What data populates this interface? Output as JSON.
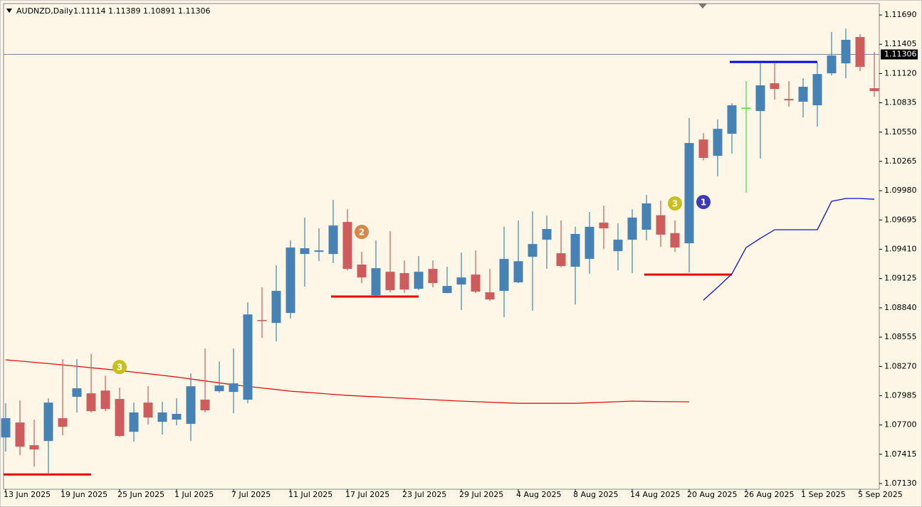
{
  "chart_data": {
    "type": "candlestick",
    "symbol": "AUDNZD,Daily",
    "ohlc_text": "1.11114 1.11389 1.10891 1.11306",
    "categories": [
      "13 Jun 2025",
      null,
      null,
      null,
      "19 Jun 2025",
      null,
      null,
      null,
      "25 Jun 2025",
      null,
      null,
      null,
      "1 Jul 2025",
      null,
      null,
      null,
      "7 Jul 2025",
      null,
      null,
      null,
      "11 Jul 2025",
      null,
      null,
      null,
      "17 Jul 2025",
      null,
      null,
      null,
      "23 Jul 2025",
      null,
      null,
      null,
      "29 Jul 2025",
      null,
      null,
      null,
      "4 Aug 2025",
      null,
      null,
      null,
      "8 Aug 2025",
      null,
      null,
      null,
      "14 Aug 2025",
      null,
      null,
      null,
      "20 Aug 2025",
      null,
      null,
      null,
      "26 Aug 2025",
      null,
      null,
      null,
      "1 Sep 2025",
      null,
      null,
      null,
      "5 Sep 2025",
      null
    ],
    "open": [
      1.07579,
      1.07724,
      1.07503,
      1.07544,
      1.07766,
      1.07974,
      1.08008,
      1.08035,
      1.07953,
      1.07634,
      1.07918,
      1.07731,
      1.07752,
      1.07711,
      1.07946,
      1.08029,
      1.08022,
      1.07946,
      1.08721,
      1.08693,
      1.0879,
      1.09364,
      1.09385,
      1.09364,
      1.09676,
      1.09261,
      1.08963,
      1.09191,
      1.09178,
      1.09025,
      1.09219,
      1.08984,
      1.09067,
      1.09164,
      1.08991,
      1.09005,
      1.09088,
      1.09337,
      1.09503,
      1.09371,
      1.0924,
      1.09316,
      1.09669,
      1.09392,
      1.09503,
      1.096,
      1.09741,
      1.09567,
      1.09468,
      1.10478,
      1.10319,
      1.10534,
      1.10783,
      1.10755,
      1.11025,
      1.10873,
      1.10846,
      1.10811,
      1.11122,
      1.11219,
      1.11475,
      1.10977
    ],
    "high": [
      1.07911,
      1.07939,
      1.07752,
      1.0796,
      1.0834,
      1.0834,
      1.08391,
      1.08181,
      1.08063,
      1.07918,
      1.08077,
      1.07925,
      1.0796,
      1.08202,
      1.08444,
      1.08318,
      1.08444,
      1.08894,
      1.0904,
      1.09254,
      1.09496,
      1.09718,
      1.09614,
      1.09891,
      1.098,
      1.09385,
      1.09496,
      1.09586,
      1.09302,
      1.09344,
      1.09302,
      1.0924,
      1.09378,
      1.09399,
      1.09219,
      1.09629,
      1.0969,
      1.09779,
      1.09736,
      1.0969,
      1.09629,
      1.09773,
      1.09834,
      1.09662,
      1.098,
      1.09939,
      1.09884,
      1.0969,
      1.10687,
      1.10541,
      1.10673,
      1.10833,
      1.11046,
      1.11226,
      1.11226,
      1.11046,
      1.11074,
      1.11226,
      1.11524,
      1.11558,
      1.11503,
      1.1133
    ],
    "low": [
      1.07441,
      1.07406,
      1.07295,
      1.07233,
      1.076,
      1.07822,
      1.07822,
      1.07835,
      1.07586,
      1.07538,
      1.07704,
      1.07607,
      1.07697,
      1.07544,
      1.07822,
      1.08015,
      1.07815,
      1.07911,
      1.08548,
      1.08514,
      1.08735,
      1.09047,
      1.09296,
      1.09275,
      1.09205,
      1.09081,
      1.08956,
      1.08991,
      1.08984,
      1.09012,
      1.0904,
      1.08984,
      1.08818,
      1.08984,
      1.08907,
      1.08749,
      1.09081,
      1.08811,
      1.09219,
      1.09233,
      1.08873,
      1.09171,
      1.09413,
      1.09205,
      1.09178,
      1.09496,
      1.09434,
      1.09385,
      1.09185,
      1.10276,
      1.10119,
      1.10341,
      1.0996,
      1.10292,
      1.10866,
      1.10797,
      1.10693,
      1.10603,
      1.11102,
      1.11074,
      1.11143,
      1.10894
    ],
    "close": [
      1.07766,
      1.07489,
      1.07462,
      1.07918,
      1.07683,
      1.08057,
      1.07835,
      1.07856,
      1.07593,
      1.07822,
      1.07773,
      1.07822,
      1.07808,
      1.08077,
      1.07843,
      1.08084,
      1.08105,
      1.08776,
      1.08714,
      1.09005,
      1.09427,
      1.0942,
      1.09399,
      1.09641,
      1.09219,
      1.09136,
      1.09226,
      1.09012,
      1.09018,
      1.09191,
      1.09081,
      1.09053,
      1.09136,
      1.08998,
      1.08922,
      1.09316,
      1.09294,
      1.09461,
      1.09607,
      1.09247,
      1.09559,
      1.09629,
      1.09614,
      1.09503,
      1.09718,
      1.09856,
      1.09552,
      1.09427,
      1.10444,
      1.10299,
      1.10582,
      1.10811,
      1.10783,
      1.11005,
      1.1097,
      1.10859,
      1.10991,
      1.11115,
      1.11295,
      1.11448,
      1.11185,
      1.10949
    ],
    "up_color": "#4682b4",
    "down_color": "#cd5c5c",
    "doji_color": "#44dd44",
    "overlays": [
      {
        "color": "#e81010",
        "values": [
          1.08334,
          1.08322,
          1.0831,
          1.08297,
          1.08285,
          1.08271,
          1.08257,
          1.08244,
          1.0823,
          1.08214,
          1.08199,
          1.08183,
          1.08167,
          1.08148,
          1.08129,
          1.0811,
          1.08091,
          1.08076,
          1.0806,
          1.08045,
          1.08029,
          1.08019,
          1.08009,
          1.07998,
          1.07988,
          1.07981,
          1.07974,
          1.07967,
          1.0796,
          1.07953,
          1.07946,
          1.07939,
          1.07932,
          1.07927,
          1.07922,
          1.07916,
          1.07911,
          1.07911,
          1.07911,
          1.07911,
          1.07911,
          1.07916,
          1.07922,
          1.07927,
          1.07932,
          1.0793,
          1.07928,
          1.07927,
          1.07925,
          null,
          null,
          null,
          null,
          null,
          null,
          null,
          null,
          null,
          null,
          null,
          null,
          null
        ]
      },
      {
        "color": "#1010e0",
        "values": [
          null,
          null,
          null,
          null,
          null,
          null,
          null,
          null,
          null,
          null,
          null,
          null,
          null,
          null,
          null,
          null,
          null,
          null,
          null,
          null,
          null,
          null,
          null,
          null,
          null,
          null,
          null,
          null,
          null,
          null,
          null,
          null,
          null,
          null,
          null,
          null,
          null,
          null,
          null,
          null,
          null,
          null,
          null,
          null,
          null,
          null,
          null,
          null,
          null,
          1.08915,
          1.0904,
          1.09171,
          1.09427,
          1.09517,
          1.096,
          1.096,
          1.096,
          1.096,
          1.09877,
          1.09904,
          1.09904,
          1.09897
        ]
      }
    ],
    "levels": [
      {
        "value": 1.07219,
        "from": 0,
        "to": 6,
        "color": "#ee0000"
      },
      {
        "value": 1.0895,
        "from": 23,
        "to": 29,
        "color": "#ee0000"
      },
      {
        "value": 1.09164,
        "from": 45,
        "to": 51,
        "color": "#ee0000"
      },
      {
        "value": 1.11233,
        "from": 51,
        "to": 57,
        "color": "#0000ee"
      }
    ],
    "markers": [
      {
        "label": "3",
        "at": 8,
        "value": 1.08264,
        "color": "#c8c01e"
      },
      {
        "label": "2",
        "at": 25,
        "value": 1.09579,
        "color": "#d8864a"
      },
      {
        "label": "3",
        "at": 47,
        "value": 1.09856,
        "color": "#c8c01e"
      },
      {
        "label": "1",
        "at": 49,
        "value": 1.0987,
        "color": "#3a3ab8"
      }
    ],
    "last_price": 1.11306,
    "ylim": [
      1.07075,
      1.11801
    ],
    "yticks": [
      {
        "value": 1.0713,
        "label": "1.07130"
      },
      1.07415,
      {
        "value": 1.077,
        "label": "1.07700"
      },
      1.07985,
      {
        "value": 1.0827,
        "label": "1.08270"
      },
      1.08555,
      {
        "value": 1.0884,
        "label": "1.08840"
      },
      1.09125,
      {
        "value": 1.0941,
        "label": "1.09410"
      },
      1.09695,
      {
        "value": 1.0998,
        "label": "1.09980"
      },
      1.10265,
      {
        "value": 1.1055,
        "label": "1.10550"
      },
      1.10835,
      {
        "value": 1.1112,
        "label": "1.11120"
      },
      1.11405,
      {
        "value": 1.1169,
        "label": "1.11690"
      }
    ]
  }
}
